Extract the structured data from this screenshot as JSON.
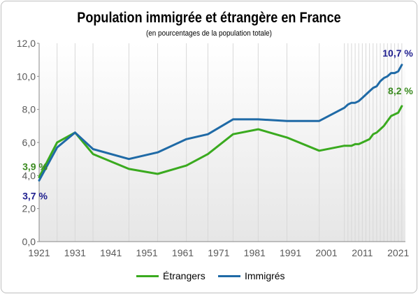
{
  "chart_data": {
    "type": "line",
    "title": "Population immigrée et étrangère en France",
    "subtitle": "(en pourcentages de la population totale)",
    "xlabel": "",
    "ylabel": "",
    "xlim": [
      1921,
      2023
    ],
    "ylim": [
      0,
      12
    ],
    "x_ticks": [
      1921,
      1931,
      1941,
      1951,
      1961,
      1971,
      1981,
      1991,
      2001,
      2011,
      2021
    ],
    "y_ticks": [
      0,
      2,
      4,
      6,
      8,
      10,
      12
    ],
    "y_tick_labels": [
      "0,0",
      "2,0",
      "4,0",
      "6,0",
      "8,0",
      "10,0",
      "12,0"
    ],
    "grid": "vertical lines at census years",
    "legend_position": "bottom",
    "series": [
      {
        "name": "Étrangers",
        "color": "#3aaa1f",
        "x": [
          1921,
          1926,
          1931,
          1936,
          1946,
          1954,
          1962,
          1968,
          1975,
          1982,
          1990,
          1999,
          2006,
          2007,
          2008,
          2009,
          2010,
          2011,
          2012,
          2013,
          2014,
          2015,
          2016,
          2017,
          2018,
          2019,
          2020,
          2021,
          2022
        ],
        "y": [
          3.9,
          6.0,
          6.6,
          5.3,
          4.4,
          4.1,
          4.6,
          5.3,
          6.5,
          6.8,
          6.3,
          5.5,
          5.8,
          5.8,
          5.8,
          5.9,
          5.9,
          6.0,
          6.1,
          6.2,
          6.5,
          6.6,
          6.8,
          7.0,
          7.3,
          7.6,
          7.7,
          7.8,
          8.2
        ]
      },
      {
        "name": "Immigrés",
        "color": "#1f6aa6",
        "x": [
          1921,
          1926,
          1931,
          1936,
          1946,
          1954,
          1962,
          1968,
          1975,
          1982,
          1990,
          1999,
          2006,
          2007,
          2008,
          2009,
          2010,
          2011,
          2012,
          2013,
          2014,
          2015,
          2016,
          2017,
          2018,
          2019,
          2020,
          2021,
          2022
        ],
        "y": [
          3.7,
          5.7,
          6.6,
          5.6,
          5.0,
          5.4,
          6.2,
          6.5,
          7.4,
          7.4,
          7.3,
          7.3,
          8.1,
          8.3,
          8.4,
          8.4,
          8.5,
          8.7,
          8.9,
          9.1,
          9.3,
          9.4,
          9.7,
          9.9,
          10.0,
          10.2,
          10.2,
          10.3,
          10.7
        ]
      }
    ],
    "annotations": [
      {
        "series": "Étrangers",
        "position": "start",
        "text": "3,9 %"
      },
      {
        "series": "Immigrés",
        "position": "start",
        "text": "3,7 %"
      },
      {
        "series": "Immigrés",
        "position": "end",
        "text": "10,7 %"
      },
      {
        "series": "Étrangers",
        "position": "end",
        "text": "8,2 %"
      }
    ]
  }
}
